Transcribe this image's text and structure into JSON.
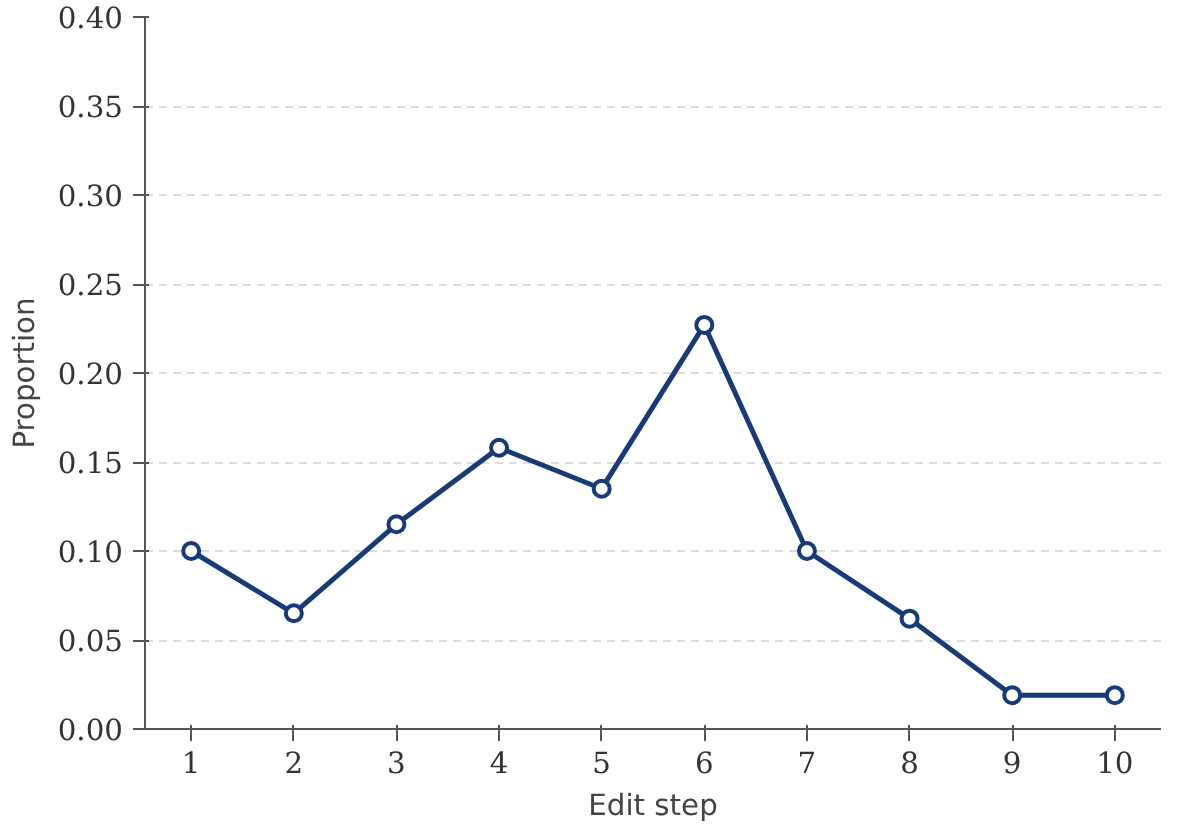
{
  "chart_data": {
    "type": "line",
    "xlabel": "Edit step",
    "ylabel": "Proportion",
    "x": [
      1,
      2,
      3,
      4,
      5,
      6,
      7,
      8,
      9,
      10
    ],
    "series": [
      {
        "color": "#173a78",
        "values": [
          0.1,
          0.065,
          0.115,
          0.158,
          0.135,
          0.227,
          0.1,
          0.062,
          0.019,
          0.019
        ]
      }
    ],
    "xlim": [
      0.55,
      10.45
    ],
    "xticks": [
      1,
      2,
      3,
      4,
      5,
      6,
      7,
      8,
      9,
      10
    ],
    "ylim": [
      0,
      0.4
    ],
    "yticks": [
      {
        "value": 0,
        "label": "0.00"
      },
      {
        "value": 0.05,
        "label": "0.05"
      },
      {
        "value": 0.1,
        "label": "0.10"
      },
      {
        "value": 0.15,
        "label": "0.15"
      },
      {
        "value": 0.2,
        "label": "0.20"
      },
      {
        "value": 0.25,
        "label": "0.25"
      },
      {
        "value": 0.3,
        "label": "0.30"
      },
      {
        "value": 0.35,
        "label": "0.35"
      },
      {
        "value": 0.4,
        "label": "0.40"
      }
    ],
    "grid": "y",
    "marker": "circle",
    "line_style": "solid"
  }
}
